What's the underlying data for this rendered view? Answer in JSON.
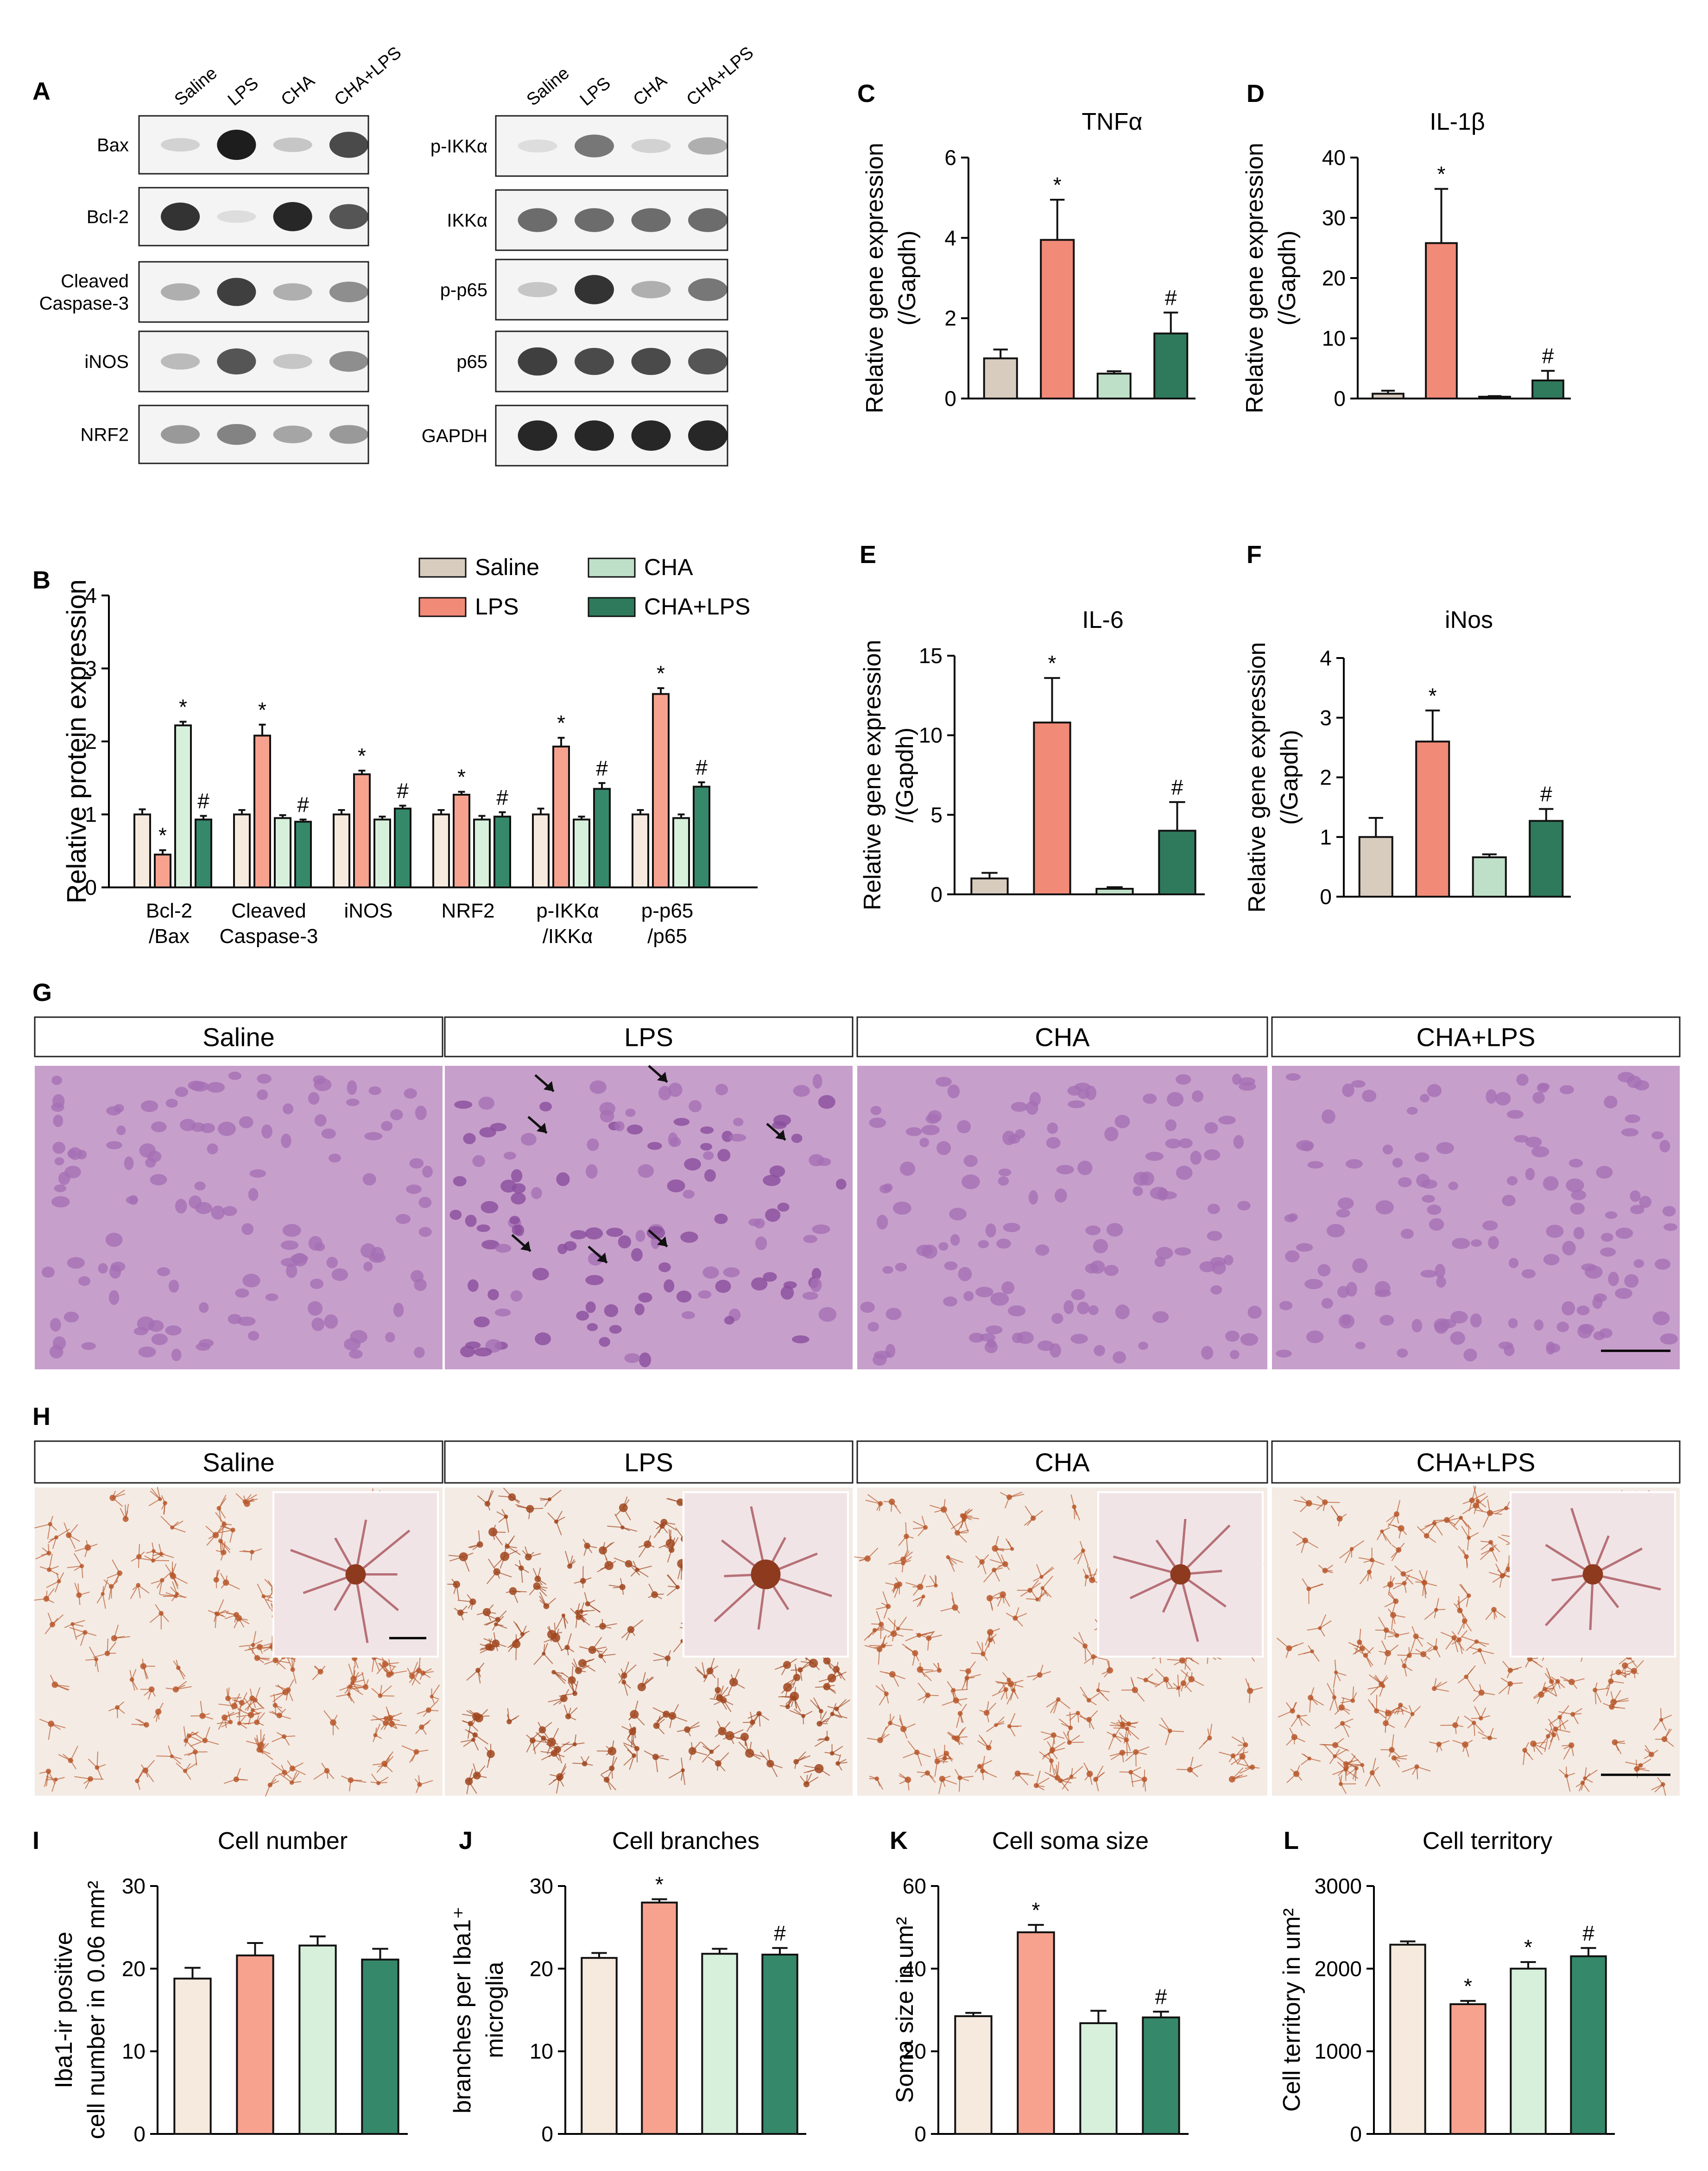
{
  "colors": {
    "Saline": "#d8ccbf",
    "LPS": "#f28a78",
    "CHA": "#bfe0c8",
    "CHA+LPS": "#2f7a5c",
    "Saline_light": "#f6e9de",
    "LPS_light": "#f7a28f",
    "CHA_light": "#d7f0dc",
    "CHALPS_dark": "#35896a",
    "he_bg": "#c79fcb",
    "ihc_bg": "#f4ebe4"
  },
  "panel_letters": {
    "A": "A",
    "B": "B",
    "C": "C",
    "D": "D",
    "E": "E",
    "F": "F",
    "G": "G",
    "H": "H",
    "I": "I",
    "J": "J",
    "K": "K",
    "L": "L"
  },
  "blots": {
    "lanes": [
      "Saline",
      "LPS",
      "CHA",
      "CHA+LPS"
    ],
    "left": {
      "labels": [
        "Bax",
        "Bcl-2",
        "Cleaved",
        "Caspase-3",
        "iNOS",
        "NRF2"
      ],
      "bands": [
        [
          0.15,
          0.95,
          0.2,
          0.75
        ],
        [
          0.85,
          0.1,
          0.9,
          0.7
        ],
        [
          0.3,
          0.8,
          0.3,
          0.45
        ],
        [
          0.25,
          0.7,
          0.2,
          0.45
        ],
        [
          0.4,
          0.5,
          0.35,
          0.4
        ]
      ]
    },
    "right": {
      "labels": [
        "p-IKKα",
        "IKKα",
        "p-p65",
        "p65",
        "GAPDH"
      ],
      "bands": [
        [
          0.1,
          0.55,
          0.15,
          0.3
        ],
        [
          0.6,
          0.6,
          0.6,
          0.6
        ],
        [
          0.2,
          0.85,
          0.3,
          0.55
        ],
        [
          0.8,
          0.75,
          0.75,
          0.7
        ],
        [
          0.9,
          0.9,
          0.9,
          0.9
        ]
      ]
    }
  },
  "legend": {
    "items": [
      "Saline",
      "LPS",
      "CHA",
      "CHA+LPS"
    ]
  },
  "chart_data": [
    {
      "id": "B",
      "type": "bar",
      "ylabel": "Relative protein expression",
      "ylim": [
        0,
        4
      ],
      "yticks": [
        0,
        1,
        2,
        3,
        4
      ],
      "categories": [
        "Bcl-2\n/Bax",
        "Cleaved\nCaspase-3",
        "iNOS",
        "NRF2",
        "p-IKKα\n/IKKα",
        "p-p65\n/p65"
      ],
      "series": [
        {
          "name": "Saline",
          "values": [
            1.0,
            1.0,
            1.0,
            1.0,
            1.0,
            1.0
          ],
          "err": [
            0.07,
            0.06,
            0.06,
            0.06,
            0.08,
            0.06
          ]
        },
        {
          "name": "LPS",
          "values": [
            0.45,
            2.08,
            1.55,
            1.27,
            1.93,
            2.65
          ],
          "err": [
            0.06,
            0.15,
            0.05,
            0.04,
            0.12,
            0.08
          ]
        },
        {
          "name": "CHA",
          "values": [
            2.22,
            0.95,
            0.93,
            0.93,
            0.93,
            0.95
          ],
          "err": [
            0.05,
            0.04,
            0.04,
            0.05,
            0.04,
            0.05
          ]
        },
        {
          "name": "CHA+LPS",
          "values": [
            0.93,
            0.9,
            1.08,
            0.97,
            1.35,
            1.38
          ],
          "err": [
            0.05,
            0.03,
            0.04,
            0.06,
            0.08,
            0.06
          ]
        }
      ],
      "marks": [
        [
          "",
          "*",
          "*",
          "#"
        ],
        [
          "",
          "*",
          "",
          "#"
        ],
        [
          "",
          "*",
          "",
          "#"
        ],
        [
          "",
          "*",
          "",
          "#"
        ],
        [
          "",
          "*",
          "",
          "#"
        ],
        [
          "",
          "*",
          "",
          "#"
        ]
      ]
    },
    {
      "id": "C",
      "type": "bar",
      "title": "TNFα",
      "ylabel": "Relative gene expression",
      "ylabel2": "(/Gapdh)",
      "ylim": [
        0,
        6
      ],
      "yticks": [
        0,
        2,
        4,
        6
      ],
      "values": [
        1.0,
        3.95,
        0.62,
        1.62
      ],
      "err": [
        0.22,
        1.0,
        0.06,
        0.52
      ],
      "marks": [
        "",
        "*",
        "",
        "#"
      ]
    },
    {
      "id": "D",
      "type": "bar",
      "title": "IL-1β",
      "ylabel": "Relative gene expression",
      "ylabel2": "(/Gapdh)",
      "ylim": [
        0,
        40
      ],
      "yticks": [
        0,
        10,
        20,
        30,
        40
      ],
      "values": [
        0.8,
        25.8,
        0.3,
        3.0
      ],
      "err": [
        0.5,
        9.0,
        0.1,
        1.6
      ],
      "marks": [
        "",
        "*",
        "",
        "#"
      ]
    },
    {
      "id": "E",
      "type": "bar",
      "title": "IL-6",
      "ylabel": "Relative gene expression",
      "ylabel2": "/(Gapdh)",
      "ylim": [
        0,
        15
      ],
      "yticks": [
        0,
        5,
        10,
        15
      ],
      "values": [
        1.0,
        10.8,
        0.35,
        4.0
      ],
      "err": [
        0.35,
        2.8,
        0.1,
        1.8
      ],
      "marks": [
        "",
        "*",
        "",
        "#"
      ]
    },
    {
      "id": "F",
      "type": "bar",
      "title": "iNos",
      "ylabel": "Relative gene expression",
      "ylabel2": "(/Gapdh)",
      "ylim": [
        0,
        4
      ],
      "yticks": [
        0,
        1,
        2,
        3,
        4
      ],
      "values": [
        1.0,
        2.6,
        0.66,
        1.27
      ],
      "err": [
        0.32,
        0.52,
        0.05,
        0.2
      ],
      "marks": [
        "",
        "*",
        "",
        "#"
      ]
    },
    {
      "id": "I",
      "type": "bar",
      "title": "Cell number",
      "ylabel": "Iba1-ir positive",
      "ylabel2": "cell number in 0.06 mm²",
      "ylim": [
        0,
        30
      ],
      "yticks": [
        0,
        10,
        20,
        30
      ],
      "values": [
        18.8,
        21.6,
        22.8,
        21.1
      ],
      "err": [
        1.3,
        1.5,
        1.1,
        1.3
      ],
      "marks": [
        "",
        "",
        "",
        ""
      ]
    },
    {
      "id": "J",
      "type": "bar",
      "title": "Cell branches",
      "ylabel": "branches per Iba1⁺",
      "ylabel2": "microglia",
      "ylim": [
        0,
        30
      ],
      "yticks": [
        0,
        10,
        20,
        30
      ],
      "values": [
        21.3,
        28.0,
        21.8,
        21.7
      ],
      "err": [
        0.6,
        0.4,
        0.6,
        0.8
      ],
      "marks": [
        "",
        "*",
        "",
        "#"
      ]
    },
    {
      "id": "K",
      "type": "bar",
      "title": "Cell soma size",
      "ylabel": "Soma size in um²",
      "ylim": [
        0,
        60
      ],
      "yticks": [
        0,
        20,
        40,
        60
      ],
      "values": [
        28.5,
        48.8,
        26.8,
        28.2
      ],
      "err": [
        0.8,
        1.8,
        3.0,
        1.4
      ],
      "marks": [
        "",
        "*",
        "",
        "#"
      ]
    },
    {
      "id": "L",
      "type": "bar",
      "title": "Cell territory",
      "ylabel": "Cell territory in um²",
      "ylim": [
        0,
        3000
      ],
      "yticks": [
        0,
        1000,
        2000,
        3000
      ],
      "values": [
        2290,
        1570,
        2000,
        2150
      ],
      "err": [
        40,
        40,
        80,
        100
      ],
      "marks": [
        "",
        "*",
        "*",
        "#"
      ]
    }
  ],
  "histology": {
    "groups": [
      "Saline",
      "LPS",
      "CHA",
      "CHA+LPS"
    ]
  }
}
